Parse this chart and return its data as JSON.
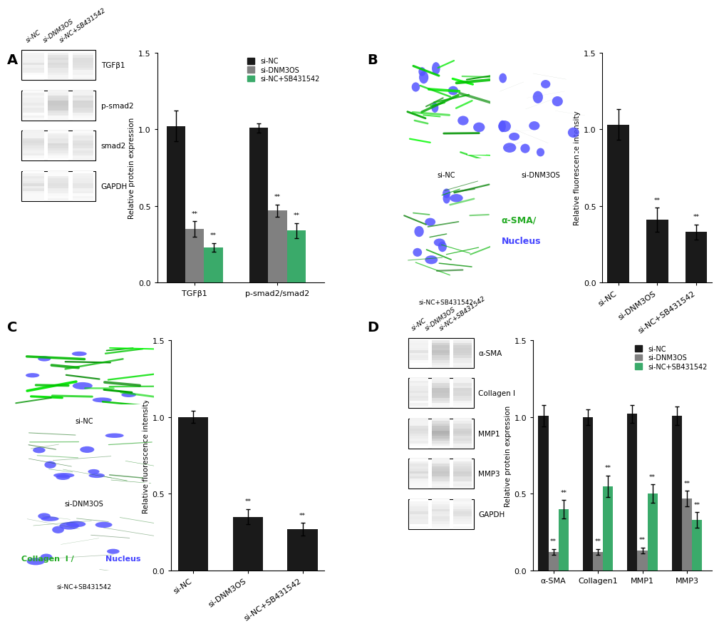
{
  "panel_A_bar": {
    "groups": [
      "TGFβ1",
      "p-smad2/smad2"
    ],
    "series": [
      "si-NC",
      "si-DNM3OS",
      "si-NC+SB431542"
    ],
    "colors": [
      "#1a1a1a",
      "#808080",
      "#3aaa6a"
    ],
    "values": [
      [
        1.02,
        0.35,
        0.23
      ],
      [
        1.01,
        0.47,
        0.34
      ]
    ],
    "errors": [
      [
        0.1,
        0.05,
        0.03
      ],
      [
        0.03,
        0.04,
        0.05
      ]
    ],
    "ylabel": "Relative protein expression",
    "ylim": [
      0,
      1.5
    ],
    "yticks": [
      0.0,
      0.5,
      1.0,
      1.5
    ],
    "significance": [
      [
        false,
        true,
        true
      ],
      [
        false,
        true,
        true
      ]
    ]
  },
  "panel_B_bar": {
    "categories": [
      "si-NC",
      "si-DNM3OS",
      "si-NC+SB431542"
    ],
    "values": [
      1.03,
      0.41,
      0.33
    ],
    "errors": [
      0.1,
      0.08,
      0.05
    ],
    "color": "#1a1a1a",
    "ylabel": "Relative fluorescence intensity",
    "ylim": [
      0,
      1.5
    ],
    "yticks": [
      0.0,
      0.5,
      1.0,
      1.5
    ],
    "significance": [
      false,
      true,
      true
    ]
  },
  "panel_C_bar": {
    "categories": [
      "si-NC",
      "si-DNM3OS",
      "si-NC+SB431542"
    ],
    "values": [
      1.0,
      0.35,
      0.27
    ],
    "errors": [
      0.04,
      0.05,
      0.04
    ],
    "color": "#1a1a1a",
    "ylabel": "Relative fluorescence intensity",
    "ylim": [
      0,
      1.5
    ],
    "yticks": [
      0.0,
      0.5,
      1.0,
      1.5
    ],
    "significance": [
      false,
      true,
      true
    ]
  },
  "panel_D_bar": {
    "groups": [
      "α-SMA",
      "Collagen1",
      "MMP1",
      "MMP3"
    ],
    "series": [
      "si-NC",
      "si-DNM3OS",
      "si-NC+SB431542"
    ],
    "colors": [
      "#1a1a1a",
      "#808080",
      "#3aaa6a"
    ],
    "values": [
      [
        1.01,
        0.12,
        0.4
      ],
      [
        1.0,
        0.12,
        0.55
      ],
      [
        1.02,
        0.13,
        0.5
      ],
      [
        1.01,
        0.47,
        0.33
      ]
    ],
    "errors": [
      [
        0.07,
        0.02,
        0.06
      ],
      [
        0.05,
        0.02,
        0.07
      ],
      [
        0.06,
        0.02,
        0.06
      ],
      [
        0.06,
        0.05,
        0.05
      ]
    ],
    "ylabel": "Relative protein expression",
    "ylim": [
      0,
      1.5
    ],
    "yticks": [
      0.0,
      0.5,
      1.0,
      1.5
    ],
    "significance": [
      [
        false,
        true,
        true
      ],
      [
        false,
        true,
        true
      ],
      [
        false,
        true,
        true
      ],
      [
        false,
        true,
        true
      ]
    ]
  },
  "legend_labels": [
    "si-NC",
    "si-DNM3OS",
    "si-NC+SB431542"
  ],
  "legend_colors": [
    "#1a1a1a",
    "#808080",
    "#3aaa6a"
  ],
  "bg_color": "#ffffff",
  "panel_A_wb": {
    "col_headers": [
      "si-NC",
      "si-DNM3OS",
      "si-NC+SB431542"
    ],
    "bands": [
      {
        "label": "TGFβ1",
        "darknesses": [
          0.08,
          0.15,
          0.12
        ]
      },
      {
        "label": "p-smad2",
        "darknesses": [
          0.08,
          0.2,
          0.15
        ]
      },
      {
        "label": "smad2",
        "darknesses": [
          0.12,
          0.12,
          0.12
        ]
      },
      {
        "label": "GAPDH",
        "darknesses": [
          0.1,
          0.1,
          0.1
        ]
      }
    ]
  },
  "panel_D_wb": {
    "col_headers": [
      "si-NC",
      "si-DNM3OS",
      "si-NC+SB431542"
    ],
    "bands": [
      {
        "label": "α-SMA",
        "darknesses": [
          0.08,
          0.25,
          0.18
        ]
      },
      {
        "label": "Collagen I",
        "darknesses": [
          0.1,
          0.22,
          0.14
        ]
      },
      {
        "label": "MMP1",
        "darknesses": [
          0.12,
          0.28,
          0.18
        ]
      },
      {
        "label": "MMP3",
        "darknesses": [
          0.12,
          0.2,
          0.18
        ]
      },
      {
        "label": "GAPDH",
        "darknesses": [
          0.1,
          0.1,
          0.1
        ]
      }
    ]
  }
}
